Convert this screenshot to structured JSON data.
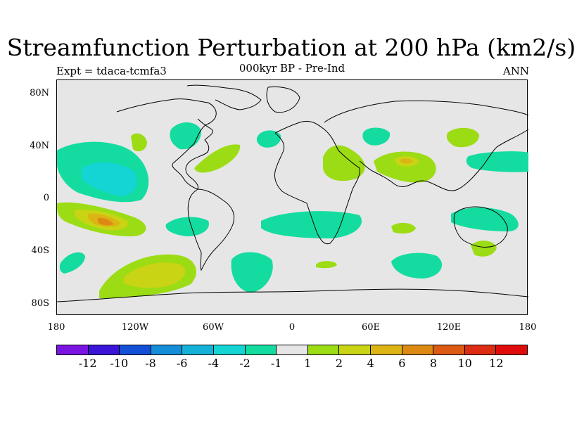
{
  "title": "Streamfunction Perturbation at 200 hPa (km2/s)",
  "subtitle_left": "Expt = tdaca-tcmfa3",
  "subtitle_center": "000kyr BP - Pre-Ind",
  "subtitle_right": "ANN",
  "lat_labels": [
    "80N",
    "40N",
    "0",
    "40S",
    "80S"
  ],
  "lon_labels": [
    "180",
    "120W",
    "60W",
    "0",
    "60E",
    "120E",
    "180"
  ],
  "colorbar": {
    "colors": [
      "#7a14e0",
      "#3a14d8",
      "#1450d6",
      "#148ed8",
      "#14b2d6",
      "#14d4d4",
      "#14dca0",
      "#e6e6e6",
      "#9cdc14",
      "#c8d414",
      "#dcb414",
      "#dc8a14",
      "#dc5a14",
      "#dc2c14",
      "#e00c0c"
    ],
    "labels": [
      "-12",
      "-10",
      "-8",
      "-6",
      "-4",
      "-2",
      "-1",
      "1",
      "2",
      "4",
      "6",
      "8",
      "10",
      "12"
    ]
  },
  "colors": {
    "ocean_land_bg": "#e6e6e6",
    "coast": "#000000"
  }
}
